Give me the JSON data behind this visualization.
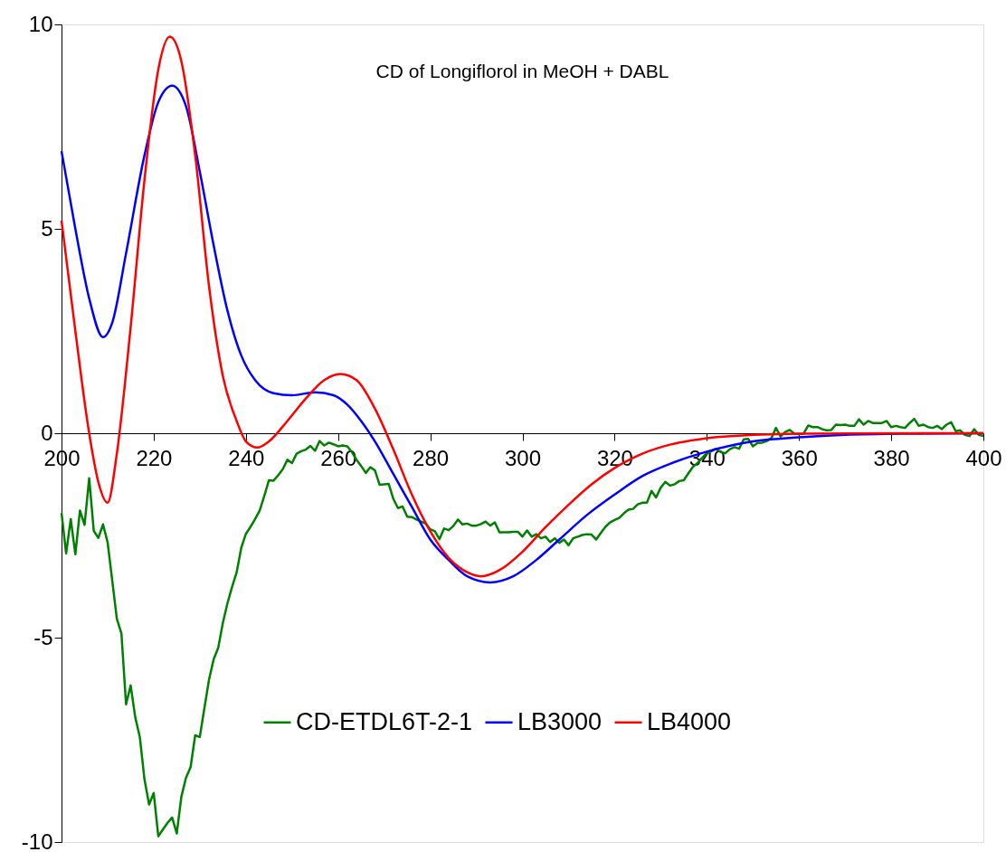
{
  "chart_data": {
    "type": "line",
    "title": "CD of Longiflorol in MeOH + DABL",
    "xlim": [
      200,
      400
    ],
    "xticks": [
      200,
      220,
      240,
      260,
      280,
      300,
      320,
      340,
      360,
      380,
      400
    ],
    "ylim": [
      -10,
      10
    ],
    "yticks": [
      -10,
      -5,
      0,
      5,
      10
    ],
    "grid": false,
    "legend": "bottom",
    "marker": "none",
    "line_style": "solid",
    "series": [
      {
        "name": "CD-ETDL6T-2-1",
        "color": "#008000",
        "x": [
          200,
          201,
          202,
          203,
          204,
          205,
          206,
          207,
          208,
          209,
          210,
          211,
          212,
          213,
          214,
          215,
          216,
          217,
          218,
          219,
          220,
          221,
          222,
          223,
          224,
          225,
          226,
          227,
          228,
          229,
          230,
          231,
          232,
          233,
          234,
          235,
          236,
          237,
          238,
          239,
          240,
          241,
          242,
          243,
          244,
          245,
          246,
          247,
          248,
          249,
          250,
          251,
          252,
          253,
          254,
          255,
          256,
          257,
          258,
          259,
          260,
          261,
          262,
          263,
          264,
          265,
          266,
          267,
          268,
          269,
          270,
          271,
          272,
          273,
          274,
          275,
          276,
          277,
          278,
          279,
          280,
          281,
          282,
          283,
          284,
          285,
          286,
          287,
          288,
          289,
          290,
          291,
          292,
          293,
          294,
          295,
          296,
          297,
          298,
          299,
          300,
          301,
          302,
          303,
          304,
          305,
          306,
          307,
          308,
          309,
          310,
          311,
          312,
          313,
          314,
          315,
          316,
          317,
          318,
          319,
          320,
          321,
          322,
          323,
          324,
          325,
          326,
          327,
          328,
          329,
          330,
          331,
          332,
          333,
          334,
          335,
          336,
          337,
          338,
          339,
          340,
          341,
          342,
          343,
          344,
          345,
          346,
          347,
          348,
          349,
          350,
          351,
          352,
          353,
          354,
          355,
          356,
          357,
          358,
          359,
          360,
          361,
          362,
          363,
          364,
          365,
          366,
          367,
          368,
          369,
          370,
          371,
          372,
          373,
          374,
          375,
          376,
          377,
          378,
          379,
          380,
          381,
          382,
          383,
          384,
          385,
          386,
          387,
          388,
          389,
          390,
          391,
          392,
          393,
          394,
          395,
          396,
          397,
          398,
          399,
          400
        ],
        "values": [
          -1.95,
          -2.94,
          -2.1,
          -2.96,
          -1.89,
          -2.24,
          -1.1,
          -2.39,
          -2.56,
          -2.23,
          -2.67,
          -3.6,
          -4.54,
          -4.9,
          -6.63,
          -6.17,
          -6.95,
          -7.44,
          -8.47,
          -9.08,
          -8.8,
          -9.86,
          -9.69,
          -9.53,
          -9.4,
          -9.79,
          -8.89,
          -8.43,
          -8.17,
          -7.39,
          -7.43,
          -6.72,
          -6.03,
          -5.53,
          -5.25,
          -4.64,
          -4.16,
          -3.76,
          -3.4,
          -2.8,
          -2.46,
          -2.29,
          -2.1,
          -1.89,
          -1.53,
          -1.15,
          -1.16,
          -1.03,
          -0.88,
          -0.65,
          -0.73,
          -0.5,
          -0.44,
          -0.4,
          -0.31,
          -0.43,
          -0.19,
          -0.3,
          -0.23,
          -0.27,
          -0.32,
          -0.3,
          -0.32,
          -0.46,
          -0.65,
          -0.8,
          -0.97,
          -0.83,
          -0.91,
          -1.26,
          -1.25,
          -1.24,
          -1.61,
          -1.83,
          -1.79,
          -2.04,
          -2.05,
          -2.11,
          -2.16,
          -2.21,
          -2.35,
          -2.4,
          -2.59,
          -2.33,
          -2.37,
          -2.27,
          -2.11,
          -2.23,
          -2.21,
          -2.26,
          -2.26,
          -2.22,
          -2.16,
          -2.26,
          -2.18,
          -2.42,
          -2.42,
          -2.42,
          -2.41,
          -2.41,
          -2.53,
          -2.38,
          -2.53,
          -2.47,
          -2.57,
          -2.53,
          -2.66,
          -2.57,
          -2.68,
          -2.6,
          -2.74,
          -2.57,
          -2.53,
          -2.49,
          -2.47,
          -2.48,
          -2.6,
          -2.44,
          -2.29,
          -2.18,
          -2.12,
          -2.07,
          -1.96,
          -1.87,
          -1.85,
          -1.74,
          -1.7,
          -1.7,
          -1.41,
          -1.57,
          -1.33,
          -1.19,
          -1.28,
          -1.25,
          -1.17,
          -1.15,
          -0.98,
          -0.82,
          -0.73,
          -0.6,
          -0.49,
          -0.44,
          -0.38,
          -0.46,
          -0.49,
          -0.39,
          -0.34,
          -0.38,
          -0.15,
          -0.14,
          -0.32,
          -0.24,
          -0.23,
          -0.19,
          -0.12,
          0.13,
          -0.08,
          0.03,
          0.08,
          -0.01,
          -0.02,
          -0.01,
          0.19,
          0.15,
          0.15,
          0.1,
          0.07,
          0.08,
          0.21,
          0.2,
          0.21,
          0.18,
          0.18,
          0.34,
          0.21,
          0.3,
          0.25,
          0.25,
          0.25,
          0.3,
          0.15,
          0.18,
          0.15,
          0.13,
          0.25,
          0.35,
          0.18,
          0.21,
          0.15,
          0.13,
          0.18,
          0.1,
          0.21,
          0.27,
          0.05,
          0.07,
          -0.04,
          -0.07,
          0.1,
          -0.04,
          -0.07
        ]
      },
      {
        "name": "LB3000",
        "color": "#0000ff",
        "x": [
          200,
          203,
          206,
          209,
          211,
          214,
          218,
          221,
          224,
          227,
          230,
          233,
          236,
          239,
          242,
          246,
          250,
          255,
          259,
          262,
          265,
          268,
          272,
          276,
          280,
          284,
          288,
          293,
          298,
          303,
          308,
          314,
          320,
          326,
          332,
          340,
          350,
          360,
          370,
          385,
          400
        ],
        "values": [
          6.9,
          5.0,
          3.3,
          2.35,
          2.7,
          4.4,
          6.8,
          8.1,
          8.5,
          8.0,
          6.4,
          4.6,
          3.0,
          1.9,
          1.3,
          0.98,
          0.93,
          1.0,
          0.93,
          0.7,
          0.3,
          -0.2,
          -1.0,
          -1.8,
          -2.6,
          -3.1,
          -3.5,
          -3.65,
          -3.5,
          -3.1,
          -2.6,
          -2.0,
          -1.5,
          -1.05,
          -0.75,
          -0.45,
          -0.2,
          -0.1,
          -0.04,
          -0.01,
          0
        ]
      },
      {
        "name": "LB4000",
        "color": "#ff0000",
        "x": [
          200,
          203,
          206,
          208,
          210,
          212,
          215,
          218,
          221,
          223.5,
          226,
          229,
          232,
          235,
          238,
          240,
          242.5,
          245,
          249,
          253,
          257,
          260.5,
          264,
          268,
          272,
          276,
          280,
          284,
          288,
          291,
          295,
          300,
          305,
          310,
          315,
          320,
          326,
          332,
          340,
          350,
          360,
          400
        ],
        "values": [
          5.2,
          2.5,
          0,
          -1.2,
          -1.7,
          -0.5,
          2.6,
          6.2,
          8.9,
          9.7,
          9.1,
          6.8,
          3.6,
          1.4,
          0.3,
          -0.2,
          -0.35,
          -0.2,
          0.3,
          0.85,
          1.3,
          1.45,
          1.3,
          0.6,
          -0.4,
          -1.5,
          -2.4,
          -3.05,
          -3.4,
          -3.5,
          -3.35,
          -2.9,
          -2.3,
          -1.75,
          -1.25,
          -0.85,
          -0.5,
          -0.28,
          -0.12,
          -0.04,
          -0.01,
          0
        ]
      }
    ]
  }
}
